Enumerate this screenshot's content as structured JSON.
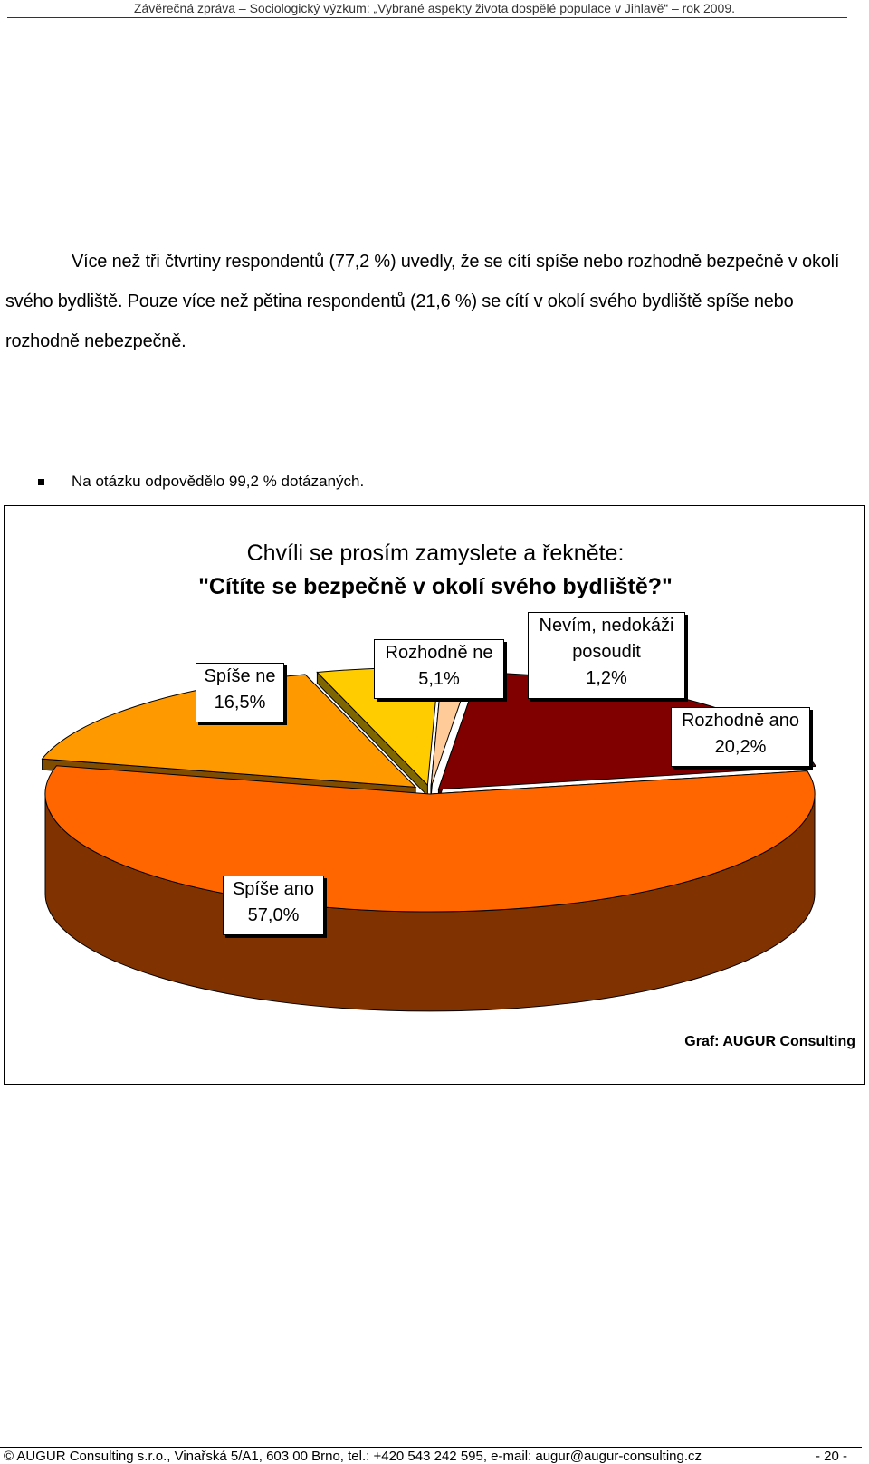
{
  "header": {
    "text": "Závěrečná zpráva – Sociologický výzkum: „Vybrané aspekty života dospělé populace v Jihlavě“ – rok 2009."
  },
  "paragraph": {
    "text": "Více než tři čtvrtiny respondentů (77,2 %) uvedly, že se cítí spíše nebo rozhodně bezpečně v okolí svého bydliště. Pouze více než pětina respondentů (21,6 %) se cítí v okolí svého bydliště spíše nebo rozhodně nebezpečně."
  },
  "bullet": {
    "text": "Na otázku odpovědělo 99,2 % dotázaných."
  },
  "chart_data": {
    "type": "pie",
    "title": "Chvíli se prosím zamyslete a řekněte:",
    "subtitle": "\"Cítíte se bezpečně v okolí svého bydliště?\"",
    "source": "Graf: AUGUR Consulting",
    "slices": [
      {
        "label_line1": "Rozhodně ano",
        "label_line2": "",
        "value_text": "20,2%",
        "value": 20.2,
        "color": "#800000",
        "side": "#4a0000"
      },
      {
        "label_line1": "Spíše ano",
        "label_line2": "",
        "value_text": "57,0%",
        "value": 57.0,
        "color": "#ff6600",
        "side": "#803300"
      },
      {
        "label_line1": "Spíše ne",
        "label_line2": "",
        "value_text": "16,5%",
        "value": 16.5,
        "color": "#ff9900",
        "side": "#804d00"
      },
      {
        "label_line1": "Rozhodně ne",
        "label_line2": "",
        "value_text": "5,1%",
        "value": 5.1,
        "color": "#ffcc00",
        "side": "#806600"
      },
      {
        "label_line1": "Nevím, nedokáži",
        "label_line2": "posoudit",
        "value_text": "1,2%",
        "value": 1.2,
        "color": "#ffcc99",
        "side": "#806650"
      }
    ]
  },
  "footer": {
    "text": "© AUGUR Consulting s.r.o., Vinařská 5/A1, 603 00 Brno, tel.: +420 543 242 595, e-mail: augur@augur-consulting.cz",
    "page": "- 20 -"
  }
}
